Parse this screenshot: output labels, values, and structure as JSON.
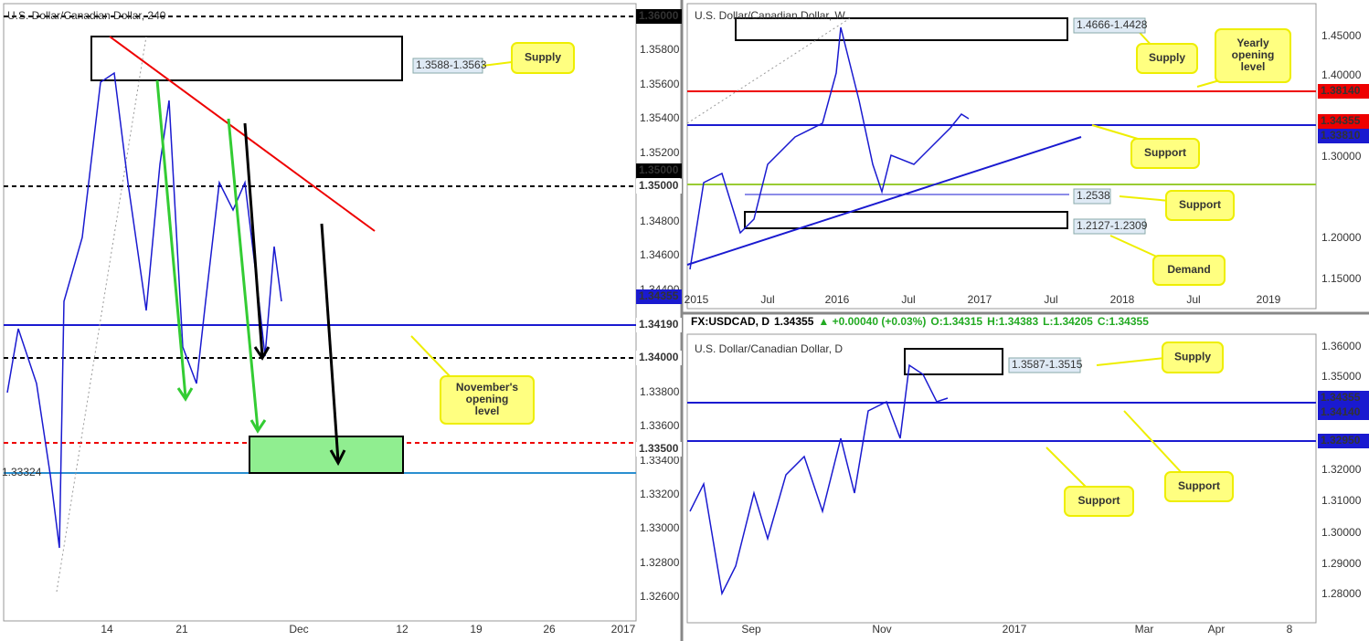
{
  "panels": [
    {
      "title": "U.S. Dollar/Canadian Dollar, 240",
      "y_axis": [
        "1.35800",
        "1.35600",
        "1.35400",
        "1.35200",
        "1.34800",
        "1.34600",
        "1.34400",
        "1.33800",
        "1.33600",
        "1.33400",
        "1.33200",
        "1.33000",
        "1.32800",
        "1.32600"
      ],
      "x_axis": [
        "14",
        "21",
        "Dec",
        "12",
        "19",
        "26",
        "2017"
      ],
      "levels": [
        "1.36000",
        "1.35000",
        "1.35000",
        "1.34355",
        "1.34190",
        "1.34000",
        "1.33500",
        "1.33324"
      ],
      "zones": [
        "1.3588-1.3563"
      ],
      "callouts": [
        [
          "Supply"
        ],
        [
          "November's",
          "opening",
          "level"
        ]
      ]
    },
    {
      "title": "U.S. Dollar/Canadian Dollar, W",
      "y_axis": [
        "1.45000",
        "1.40000",
        "1.30000",
        "1.20000",
        "1.15000"
      ],
      "x_axis": [
        "2015",
        "Jul",
        "2016",
        "Jul",
        "2017",
        "Jul",
        "2018",
        "Jul",
        "2019"
      ],
      "levels": [
        "1.38140",
        "1.34355",
        "1.33810"
      ],
      "zones": [
        "1.4666-1.4428",
        "1.2538",
        "1.2127-1.2309"
      ],
      "callouts": [
        [
          "Supply"
        ],
        [
          "Yearly",
          "opening",
          "level"
        ],
        [
          "Support"
        ],
        [
          "Support"
        ],
        [
          "Demand"
        ]
      ]
    },
    {
      "title": "U.S. Dollar/Canadian Dollar, D",
      "y_axis": [
        "1.36000",
        "1.35000",
        "1.32000",
        "1.31000",
        "1.30000",
        "1.29000",
        "1.28000"
      ],
      "x_axis": [
        "Sep",
        "Nov",
        "2017",
        "Mar",
        "Apr",
        "8"
      ],
      "levels": [
        "1.34355",
        "1.34140",
        "1.32950"
      ],
      "zones": [
        "1.3587-1.3515"
      ],
      "callouts": [
        [
          "Supply"
        ],
        [
          "Support"
        ],
        [
          "Support"
        ]
      ]
    }
  ],
  "quote": {
    "symbol": "FX:USDCAD, D",
    "last": "1.34355",
    "change": "▲ +0.00040 (+0.03%)",
    "open": "O:1.34315",
    "high": "H:1.34383",
    "low": "L:1.34205",
    "close": "C:1.34355"
  }
}
